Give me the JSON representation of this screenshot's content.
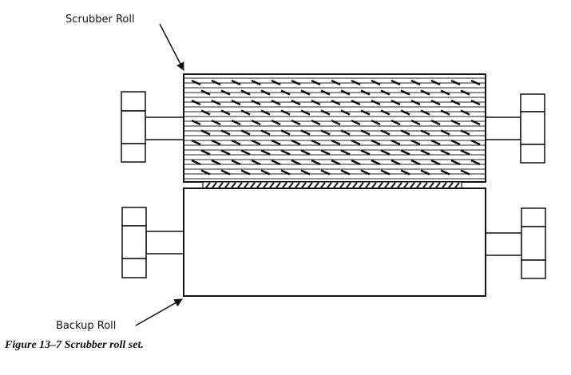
{
  "labels": {
    "scrubber_roll": "Scrubber Roll",
    "backup_roll": "Backup Roll"
  },
  "caption": "Figure 13–7  Scrubber roll set.",
  "colors": {
    "ink": "#111111",
    "background": "#ffffff"
  }
}
